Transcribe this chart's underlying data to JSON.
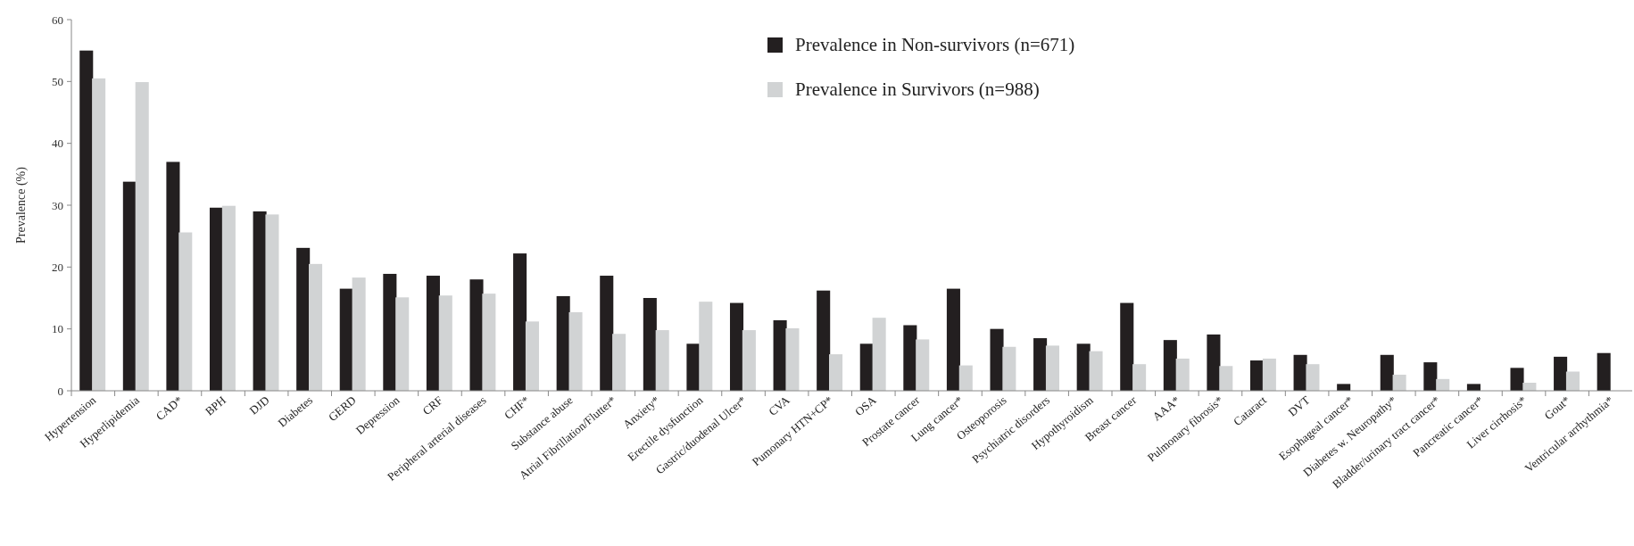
{
  "chart_data": {
    "type": "bar",
    "ylabel": "Prevalence (%)",
    "categories": [
      "Hypertension",
      "Hyperlipidemia",
      "CAD*",
      "BPH",
      "DJD",
      "Diabetes",
      "GERD",
      "Depression",
      "CRF",
      "Peripheral arterial diseases",
      "CHF*",
      "Substance abuse",
      "Atrial Fibrillation/Flutter*",
      "Anxiety*",
      "Erectile dysfunction",
      "Gastric/duodenal Ulcer*",
      "CVA",
      "Pumonary HTN+CP*",
      "OSA",
      "Prostate cancer",
      "Lung cancer*",
      "Osteoporosis",
      "Psychiatric disorders",
      "Hypothyroidism",
      "Breast cancer",
      "AAA*",
      "Pulmonary fibrosis*",
      "Cataract",
      "DVT",
      "Esophageal cancer*",
      "Diabetes w. Neuropathy*",
      "Bladder/urinary tract cancer*",
      "Pancreatic cancer*",
      "Liver cirrhosis*",
      "Gout*",
      "Ventricular  arrhythmia*"
    ],
    "series": [
      {
        "name": "Prevalence in Non-survivors (n=671)",
        "color": "#231f20",
        "values": [
          55,
          33.8,
          37,
          29.6,
          29,
          23.1,
          16.5,
          18.9,
          18.6,
          18,
          22.2,
          15.3,
          18.6,
          15,
          7.6,
          14.2,
          11.4,
          16.2,
          7.6,
          10.6,
          16.5,
          10,
          8.5,
          7.6,
          14.2,
          8.2,
          9.1,
          4.9,
          5.8,
          1.1,
          5.8,
          4.6,
          1.1,
          3.7,
          5.5,
          6.1
        ]
      },
      {
        "name": "Prevalence in Survivors (n=988)",
        "color": "#d1d3d4",
        "values": [
          50.5,
          49.9,
          25.6,
          29.9,
          28.5,
          20.5,
          18.3,
          15.1,
          15.4,
          15.7,
          11.2,
          12.7,
          9.2,
          9.8,
          14.4,
          9.8,
          10.1,
          5.9,
          11.8,
          8.3,
          4.1,
          7.1,
          7.3,
          6.4,
          4.3,
          5.2,
          4,
          5.2,
          4.3,
          0,
          2.6,
          1.9,
          0,
          1.3,
          3.1,
          null
        ]
      }
    ],
    "ylim": [
      0,
      60
    ],
    "yticks": [
      0,
      10,
      20,
      30,
      40,
      50,
      60
    ],
    "legend": "top right"
  }
}
